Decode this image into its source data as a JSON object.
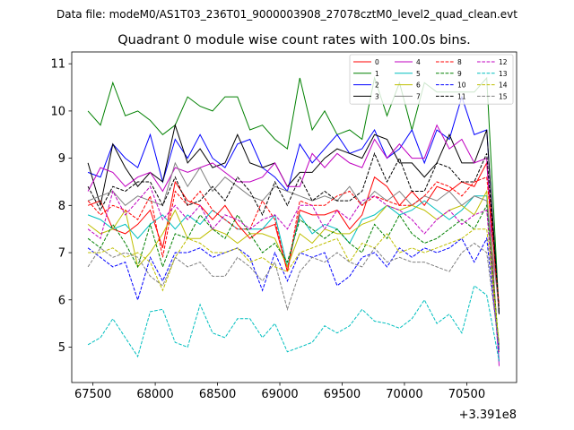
{
  "figure": {
    "suptitle": "Data file: modeM0/AS1T03_236T01_9000003908_27078cztM0_level2_quad_clean.evt"
  },
  "chart_data": {
    "type": "line",
    "title": "Quadrant 0 module wise count rates with 100.0s bins.",
    "xlabel": "",
    "ylabel": "",
    "x_offset_label": "+3.391e8",
    "x_offset": 339100000,
    "xlim": [
      67330,
      70900
    ],
    "ylim": [
      4.25,
      11.25
    ],
    "xticks": [
      67500,
      68000,
      68500,
      69000,
      69500,
      70000,
      70500
    ],
    "yticks": [
      5,
      6,
      7,
      8,
      9,
      10,
      11
    ],
    "x": [
      67460,
      67560,
      67660,
      67760,
      67860,
      67960,
      68060,
      68160,
      68260,
      68360,
      68460,
      68560,
      68660,
      68760,
      68860,
      68960,
      69060,
      69160,
      69260,
      69360,
      69460,
      69560,
      69660,
      69760,
      69860,
      69960,
      70060,
      70160,
      70260,
      70360,
      70460,
      70560,
      70660,
      70760
    ],
    "legend": {
      "location": "upper right",
      "ncol": 4
    },
    "series": [
      {
        "name": "0",
        "color": "#ff0000",
        "dash": "solid",
        "values": [
          8.0,
          8.1,
          7.5,
          7.4,
          7.6,
          7.9,
          7.1,
          8.5,
          8.1,
          8.0,
          7.7,
          8.0,
          7.6,
          7.3,
          7.5,
          7.6,
          6.6,
          7.9,
          7.8,
          7.8,
          7.9,
          7.5,
          7.8,
          8.6,
          8.4,
          8.0,
          8.3,
          8.0,
          8.4,
          8.3,
          8.5,
          8.4,
          8.9,
          5.7
        ]
      },
      {
        "name": "1",
        "color": "#008000",
        "dash": "solid",
        "values": [
          10.0,
          9.7,
          10.6,
          9.9,
          10.0,
          9.8,
          9.5,
          9.7,
          10.3,
          10.1,
          10.0,
          10.3,
          10.3,
          9.6,
          9.7,
          9.4,
          9.2,
          10.7,
          9.6,
          10.0,
          9.5,
          9.6,
          9.4,
          10.7,
          9.9,
          10.6,
          9.6,
          10.6,
          10.4,
          10.4,
          10.4,
          10.4,
          10.7,
          5.7
        ]
      },
      {
        "name": "2",
        "color": "#0000ff",
        "dash": "solid",
        "values": [
          8.7,
          8.6,
          9.3,
          9.0,
          8.8,
          9.5,
          8.5,
          9.4,
          9.0,
          9.5,
          9.0,
          8.8,
          9.3,
          9.4,
          8.8,
          8.6,
          8.3,
          9.3,
          8.9,
          9.2,
          9.5,
          9.1,
          9.2,
          9.6,
          9.0,
          9.2,
          9.6,
          8.9,
          9.6,
          9.4,
          10.3,
          9.5,
          9.6,
          5.7
        ]
      },
      {
        "name": "3",
        "color": "#000000",
        "dash": "solid",
        "values": [
          8.9,
          8.0,
          9.3,
          8.8,
          8.4,
          8.7,
          8.5,
          9.7,
          8.9,
          9.2,
          8.8,
          8.9,
          9.5,
          8.9,
          8.8,
          8.9,
          8.4,
          8.7,
          8.7,
          9.0,
          9.2,
          9.1,
          9.0,
          9.5,
          9.4,
          8.9,
          8.9,
          8.6,
          8.9,
          9.5,
          8.9,
          8.9,
          9.6,
          5.7
        ]
      },
      {
        "name": "4",
        "color": "#c000c0",
        "dash": "solid",
        "values": [
          8.3,
          8.8,
          8.7,
          8.4,
          8.6,
          8.7,
          8.3,
          8.8,
          8.7,
          8.8,
          8.9,
          8.7,
          8.5,
          8.5,
          8.6,
          8.9,
          8.4,
          8.4,
          9.1,
          8.8,
          9.1,
          8.9,
          8.8,
          9.4,
          9.0,
          9.3,
          9.0,
          9.0,
          9.7,
          9.2,
          9.4,
          8.9,
          9.0,
          4.6
        ]
      },
      {
        "name": "5",
        "color": "#00bfbf",
        "dash": "solid",
        "values": [
          7.8,
          7.7,
          7.5,
          7.6,
          7.3,
          7.6,
          7.8,
          7.5,
          7.8,
          7.6,
          7.9,
          7.7,
          7.5,
          7.5,
          7.5,
          7.8,
          6.7,
          7.8,
          7.4,
          7.6,
          7.5,
          7.2,
          7.7,
          7.8,
          8.0,
          7.8,
          7.9,
          8.1,
          7.9,
          7.7,
          7.9,
          8.2,
          8.2,
          4.7
        ]
      },
      {
        "name": "6",
        "color": "#bfbf00",
        "dash": "solid",
        "values": [
          7.6,
          7.4,
          7.5,
          7.9,
          6.7,
          7.0,
          7.4,
          7.9,
          7.3,
          7.3,
          7.5,
          7.4,
          7.2,
          7.4,
          7.4,
          7.3,
          6.7,
          7.4,
          7.2,
          7.5,
          7.4,
          7.4,
          7.6,
          7.7,
          8.0,
          7.9,
          8.0,
          7.9,
          7.7,
          7.9,
          8.0,
          7.8,
          8.3,
          4.9
        ]
      },
      {
        "name": "7",
        "color": "#808080",
        "dash": "solid",
        "values": [
          8.1,
          8.2,
          8.3,
          8.0,
          8.2,
          8.1,
          8.0,
          8.9,
          8.4,
          8.8,
          8.3,
          8.6,
          8.4,
          8.2,
          8.1,
          8.4,
          8.3,
          8.2,
          8.1,
          8.2,
          8.1,
          8.4,
          8.0,
          8.3,
          8.1,
          8.3,
          8.0,
          8.2,
          8.1,
          8.3,
          8.0,
          8.2,
          8.1,
          5.8
        ]
      },
      {
        "name": "8",
        "color": "#ff0000",
        "dash": "dashed",
        "values": [
          8.1,
          7.8,
          8.0,
          7.9,
          7.7,
          8.2,
          6.9,
          8.3,
          8.0,
          8.3,
          7.9,
          7.7,
          7.5,
          7.5,
          8.1,
          7.7,
          6.6,
          8.1,
          8.0,
          8.0,
          8.2,
          8.3,
          8.0,
          8.2,
          8.1,
          8.0,
          8.0,
          8.2,
          8.5,
          8.4,
          8.2,
          8.5,
          8.6,
          5.9
        ]
      },
      {
        "name": "9",
        "color": "#008000",
        "dash": "dashed",
        "values": [
          7.3,
          7.1,
          7.6,
          7.2,
          6.7,
          7.6,
          6.7,
          7.4,
          7.3,
          7.8,
          7.5,
          7.3,
          7.8,
          7.4,
          7.0,
          7.2,
          6.8,
          7.7,
          7.5,
          7.3,
          7.5,
          7.2,
          7.0,
          7.6,
          7.3,
          7.8,
          7.4,
          7.2,
          7.3,
          7.5,
          7.7,
          7.5,
          8.0,
          5.0
        ]
      },
      {
        "name": "10",
        "color": "#0000ff",
        "dash": "dashed",
        "values": [
          7.1,
          6.9,
          6.7,
          6.8,
          6.0,
          6.9,
          6.4,
          7.0,
          7.0,
          7.1,
          6.9,
          7.0,
          7.1,
          6.9,
          6.2,
          7.0,
          6.4,
          7.0,
          6.9,
          7.0,
          6.3,
          6.5,
          6.9,
          7.0,
          6.7,
          7.1,
          6.9,
          7.1,
          7.0,
          7.1,
          7.3,
          6.8,
          7.3,
          4.9
        ]
      },
      {
        "name": "11",
        "color": "#000000",
        "dash": "dashed",
        "values": [
          8.4,
          7.9,
          8.4,
          8.3,
          8.5,
          8.5,
          8.0,
          8.6,
          8.0,
          8.1,
          8.4,
          8.1,
          8.6,
          8.3,
          7.8,
          8.5,
          8.0,
          8.6,
          8.1,
          8.3,
          8.1,
          8.1,
          8.3,
          9.1,
          8.5,
          9.0,
          8.3,
          8.3,
          8.9,
          8.8,
          8.5,
          8.5,
          9.1,
          5.8
        ]
      },
      {
        "name": "12",
        "color": "#c000c0",
        "dash": "dashed",
        "values": [
          7.5,
          7.3,
          8.3,
          7.8,
          8.1,
          8.4,
          7.7,
          8.0,
          7.7,
          8.0,
          7.5,
          7.8,
          7.7,
          7.5,
          7.7,
          7.8,
          7.5,
          8.0,
          8.0,
          7.5,
          7.9,
          7.7,
          8.1,
          8.2,
          8.0,
          7.9,
          7.7,
          7.4,
          7.7,
          7.9,
          7.6,
          7.8,
          7.9,
          4.7
        ]
      },
      {
        "name": "13",
        "color": "#00bfbf",
        "dash": "dashed",
        "values": [
          5.05,
          5.2,
          5.6,
          5.2,
          4.8,
          5.75,
          5.8,
          5.1,
          5.0,
          5.9,
          5.3,
          5.2,
          5.6,
          5.6,
          5.2,
          5.5,
          4.9,
          5.0,
          5.1,
          5.45,
          5.3,
          5.45,
          5.8,
          5.55,
          5.5,
          5.4,
          5.6,
          6.0,
          5.5,
          5.7,
          5.3,
          6.3,
          6.1,
          4.7
        ]
      },
      {
        "name": "14",
        "color": "#bfbf00",
        "dash": "dashed",
        "values": [
          7.0,
          7.0,
          7.1,
          6.9,
          7.0,
          6.8,
          6.2,
          6.9,
          7.3,
          7.2,
          7.0,
          7.0,
          7.1,
          6.8,
          6.9,
          6.7,
          6.6,
          7.0,
          7.1,
          7.2,
          7.3,
          6.8,
          7.2,
          7.1,
          7.4,
          7.0,
          7.1,
          7.0,
          7.1,
          7.2,
          7.3,
          7.5,
          7.5,
          5.1
        ]
      },
      {
        "name": "15",
        "color": "#808080",
        "dash": "dashed",
        "values": [
          6.7,
          7.1,
          6.9,
          7.0,
          6.9,
          6.5,
          6.3,
          6.9,
          6.7,
          6.8,
          6.5,
          6.5,
          6.9,
          6.7,
          6.4,
          6.8,
          5.8,
          6.6,
          6.9,
          6.8,
          7.0,
          6.8,
          6.7,
          7.1,
          6.8,
          6.9,
          6.8,
          6.8,
          6.7,
          6.6,
          7.0,
          7.2,
          7.0,
          5.0
        ]
      }
    ]
  }
}
